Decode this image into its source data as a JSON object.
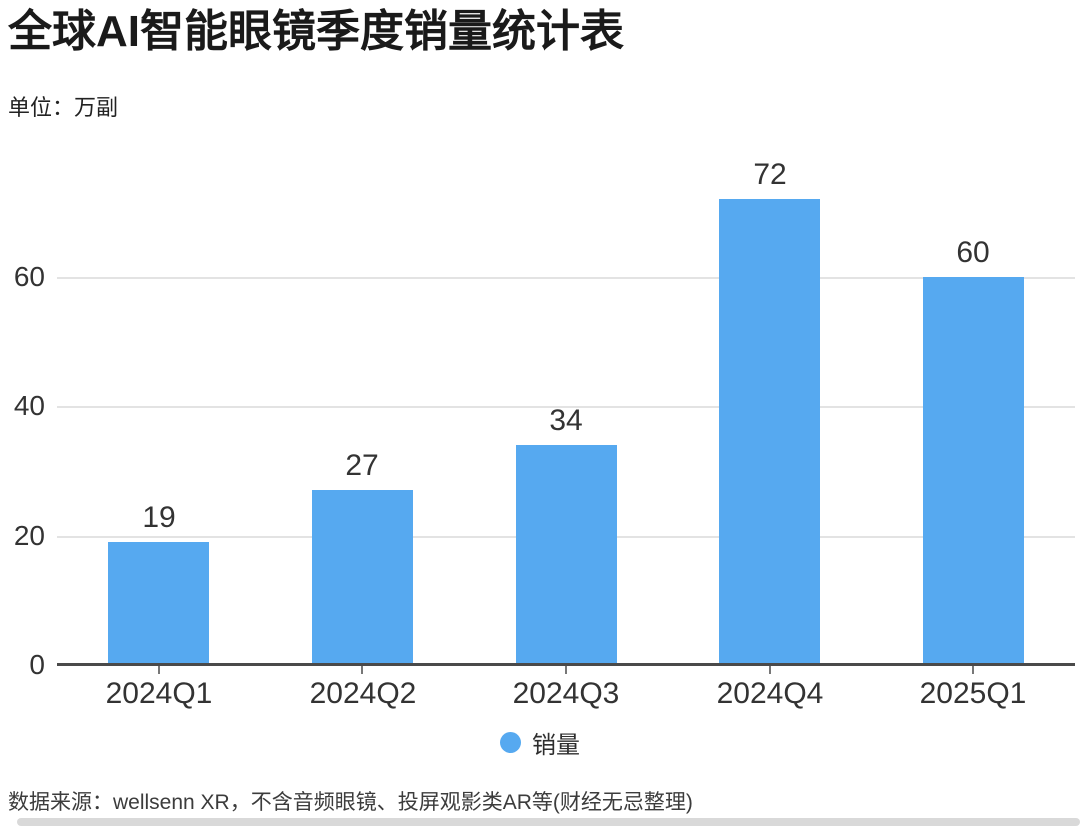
{
  "page": {
    "background_color": "#ffffff"
  },
  "chart_data": {
    "type": "bar",
    "title": "全球AI智能眼镜季度销量统计表",
    "unit_label": "单位：万副",
    "categories": [
      "2024Q1",
      "2024Q2",
      "2024Q3",
      "2024Q4",
      "2025Q1"
    ],
    "series": [
      {
        "name": "销量",
        "values": [
          19,
          27,
          34,
          72,
          60
        ]
      }
    ],
    "ylim": [
      0,
      80
    ],
    "yticks": [
      0,
      20,
      40,
      60
    ],
    "grid": true,
    "legend_position": "bottom",
    "bar_color": "#56a9f0",
    "gridline_color": "#e3e3e3",
    "axis_color": "#4a4a4a",
    "label_color": "#333333",
    "source": "数据来源：wellsenn XR，不含音频眼镜、投屏观影类AR等(财经无忌整理)"
  }
}
